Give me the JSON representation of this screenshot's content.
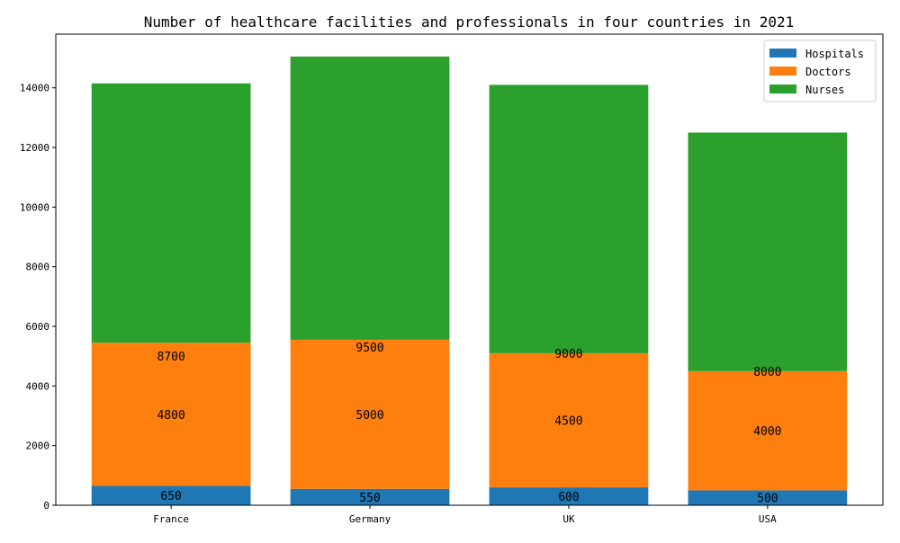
{
  "chart_data": {
    "type": "bar",
    "stacked": true,
    "title": "Number of healthcare facilities and professionals in four countries in 2021",
    "xlabel": "",
    "ylabel": "",
    "categories": [
      "France",
      "Germany",
      "UK",
      "USA"
    ],
    "series": [
      {
        "name": "Hospitals",
        "color": "#1f77b4",
        "values": [
          650,
          550,
          600,
          500
        ]
      },
      {
        "name": "Doctors",
        "color": "#ff7f0e",
        "values": [
          4800,
          5000,
          4500,
          4000
        ]
      },
      {
        "name": "Nurses",
        "color": "#2ca02c",
        "values": [
          8700,
          9500,
          9000,
          8000
        ]
      }
    ],
    "ylim": [
      0,
      15800
    ],
    "yticks": [
      0,
      2000,
      4000,
      6000,
      8000,
      10000,
      12000,
      14000
    ],
    "grid": false,
    "legend_position": "top-right"
  }
}
